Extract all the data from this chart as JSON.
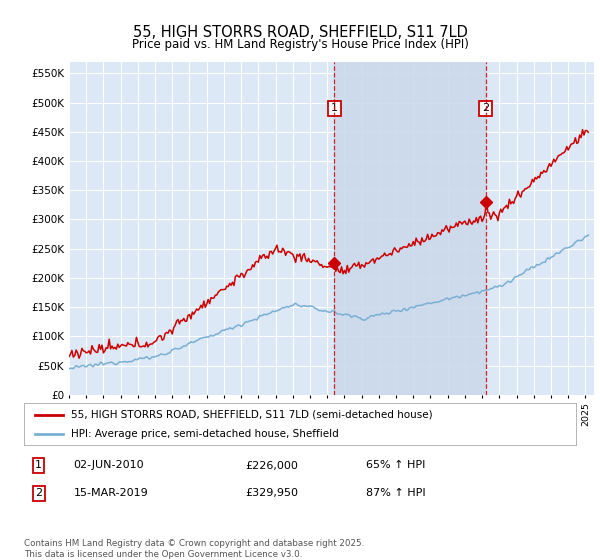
{
  "title": "55, HIGH STORRS ROAD, SHEFFIELD, S11 7LD",
  "subtitle": "Price paid vs. HM Land Registry's House Price Index (HPI)",
  "ylim": [
    0,
    570000
  ],
  "yticks": [
    0,
    50000,
    100000,
    150000,
    200000,
    250000,
    300000,
    350000,
    400000,
    450000,
    500000,
    550000
  ],
  "xlim_start": 1995.0,
  "xlim_end": 2025.5,
  "plot_bg": "#dce8f5",
  "grid_color": "#ffffff",
  "red_color": "#cc0000",
  "blue_color": "#7aafd4",
  "shade_color": "#ccd9ea",
  "ann1_x": 2010.42,
  "ann1_y": 226000,
  "ann2_x": 2019.21,
  "ann2_y": 329950,
  "legend_line1": "55, HIGH STORRS ROAD, SHEFFIELD, S11 7LD (semi-detached house)",
  "legend_line2": "HPI: Average price, semi-detached house, Sheffield",
  "footer": "Contains HM Land Registry data © Crown copyright and database right 2025.\nThis data is licensed under the Open Government Licence v3.0.",
  "table_row1": [
    "1",
    "02-JUN-2010",
    "£226,000",
    "65% ↑ HPI"
  ],
  "table_row2": [
    "2",
    "15-MAR-2019",
    "£329,950",
    "87% ↑ HPI"
  ]
}
